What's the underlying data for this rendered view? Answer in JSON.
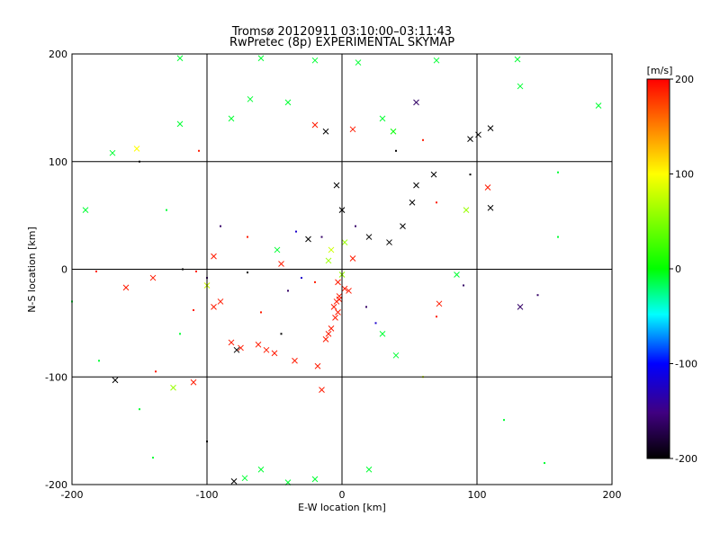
{
  "chart_data": {
    "type": "scatter",
    "title": "Tromsø 20120911 03:10:00–03:11:43",
    "subtitle": "RwPretec (8p) EXPERIMENTAL SKYMAP",
    "xlabel": "E-W location [km]",
    "ylabel": "N-S location [km]",
    "xlim": [
      -200,
      200
    ],
    "ylim": [
      -200,
      200
    ],
    "xticks": [
      "-200",
      "-100",
      "0",
      "100",
      "200"
    ],
    "yticks": [
      "-200",
      "-100",
      "0",
      "100",
      "200"
    ],
    "grid": true,
    "colorbar": {
      "label": "[m/s]",
      "range": [
        -200,
        200
      ],
      "ticks": [
        "200",
        "100",
        "0",
        "-100",
        "-200"
      ]
    },
    "points": [
      [
        -170,
        108,
        -10,
        "x"
      ],
      [
        -152,
        112,
        100,
        "x"
      ],
      [
        -120,
        135,
        -10,
        "x"
      ],
      [
        -106,
        110,
        190,
        "d"
      ],
      [
        -82,
        140,
        -10,
        "x"
      ],
      [
        -68,
        158,
        -10,
        "x"
      ],
      [
        -40,
        155,
        -10,
        "x"
      ],
      [
        -20,
        134,
        190,
        "x"
      ],
      [
        -12,
        128,
        -200,
        "x"
      ],
      [
        8,
        130,
        190,
        "x"
      ],
      [
        30,
        140,
        -10,
        "x"
      ],
      [
        38,
        128,
        0,
        "x"
      ],
      [
        55,
        155,
        -160,
        "x"
      ],
      [
        95,
        121,
        -200,
        "x"
      ],
      [
        101,
        125,
        -200,
        "x"
      ],
      [
        110,
        131,
        -200,
        "x"
      ],
      [
        132,
        170,
        -10,
        "x"
      ],
      [
        190,
        152,
        -10,
        "x"
      ],
      [
        -120,
        196,
        -10,
        "x"
      ],
      [
        -60,
        196,
        -10,
        "x"
      ],
      [
        -20,
        194,
        -10,
        "x"
      ],
      [
        12,
        192,
        -10,
        "x"
      ],
      [
        70,
        194,
        -10,
        "x"
      ],
      [
        130,
        195,
        -10,
        "x"
      ],
      [
        -4,
        78,
        -200,
        "x"
      ],
      [
        0,
        55,
        -200,
        "x"
      ],
      [
        10,
        40,
        -160,
        "d"
      ],
      [
        20,
        30,
        -200,
        "x"
      ],
      [
        35,
        25,
        -200,
        "x"
      ],
      [
        45,
        40,
        -200,
        "x"
      ],
      [
        52,
        62,
        -200,
        "x"
      ],
      [
        55,
        78,
        -200,
        "x"
      ],
      [
        68,
        88,
        -200,
        "x"
      ],
      [
        70,
        62,
        190,
        "d"
      ],
      [
        95,
        88,
        -200,
        "d"
      ],
      [
        108,
        76,
        190,
        "x"
      ],
      [
        110,
        57,
        -200,
        "x"
      ],
      [
        92,
        55,
        60,
        "x"
      ],
      [
        -15,
        30,
        -160,
        "d"
      ],
      [
        -25,
        28,
        -200,
        "x"
      ],
      [
        -34,
        35,
        -120,
        "d"
      ],
      [
        -48,
        18,
        -10,
        "x"
      ],
      [
        -45,
        5,
        190,
        "x"
      ],
      [
        -70,
        -3,
        -200,
        "d"
      ],
      [
        -70,
        30,
        190,
        "d"
      ],
      [
        -90,
        40,
        -160,
        "d"
      ],
      [
        -108,
        -2,
        190,
        "d"
      ],
      [
        -118,
        0,
        -200,
        "d"
      ],
      [
        -140,
        -8,
        190,
        "x"
      ],
      [
        -160,
        -17,
        190,
        "x"
      ],
      [
        -182,
        -2,
        190,
        "d"
      ],
      [
        -190,
        55,
        -10,
        "x"
      ],
      [
        -95,
        12,
        190,
        "x"
      ],
      [
        -90,
        -30,
        190,
        "x"
      ],
      [
        -95,
        -35,
        190,
        "x"
      ],
      [
        -100,
        -15,
        80,
        "x"
      ],
      [
        -78,
        -75,
        -200,
        "x"
      ],
      [
        -82,
        -68,
        190,
        "x"
      ],
      [
        -75,
        -73,
        190,
        "x"
      ],
      [
        -62,
        -70,
        190,
        "x"
      ],
      [
        -56,
        -75,
        190,
        "x"
      ],
      [
        -50,
        -78,
        190,
        "x"
      ],
      [
        -35,
        -85,
        190,
        "x"
      ],
      [
        -18,
        -90,
        190,
        "x"
      ],
      [
        -15,
        -112,
        190,
        "x"
      ],
      [
        -110,
        -105,
        190,
        "x"
      ],
      [
        -125,
        -110,
        60,
        "x"
      ],
      [
        -168,
        -103,
        -200,
        "x"
      ],
      [
        -80,
        -197,
        -200,
        "x"
      ],
      [
        -72,
        -194,
        -10,
        "x"
      ],
      [
        -60,
        -186,
        -10,
        "x"
      ],
      [
        -40,
        -198,
        -10,
        "x"
      ],
      [
        -20,
        -195,
        -10,
        "x"
      ],
      [
        20,
        -186,
        -10,
        "x"
      ],
      [
        132,
        -35,
        -160,
        "x"
      ],
      [
        145,
        -24,
        -160,
        "d"
      ],
      [
        90,
        -15,
        -160,
        "d"
      ],
      [
        85,
        -5,
        -10,
        "x"
      ],
      [
        72,
        -32,
        190,
        "x"
      ],
      [
        70,
        -44,
        190,
        "d"
      ],
      [
        60,
        -100,
        80,
        "d"
      ],
      [
        40,
        -80,
        -10,
        "x"
      ],
      [
        30,
        -60,
        -10,
        "x"
      ],
      [
        5,
        -20,
        190,
        "x"
      ],
      [
        -2,
        -25,
        190,
        "x"
      ],
      [
        -4,
        -30,
        190,
        "x"
      ],
      [
        -6,
        -35,
        190,
        "x"
      ],
      [
        -3,
        -40,
        190,
        "x"
      ],
      [
        -5,
        -45,
        190,
        "x"
      ],
      [
        -8,
        -55,
        190,
        "x"
      ],
      [
        -10,
        -60,
        190,
        "x"
      ],
      [
        -12,
        -65,
        190,
        "x"
      ],
      [
        -2,
        -28,
        190,
        "x"
      ],
      [
        2,
        -18,
        190,
        "x"
      ],
      [
        -3,
        -12,
        190,
        "x"
      ],
      [
        0,
        -5,
        60,
        "x"
      ],
      [
        -10,
        8,
        60,
        "x"
      ],
      [
        -8,
        18,
        80,
        "x"
      ],
      [
        2,
        25,
        60,
        "x"
      ],
      [
        8,
        10,
        190,
        "x"
      ],
      [
        -20,
        -12,
        190,
        "d"
      ],
      [
        -30,
        -8,
        -120,
        "d"
      ],
      [
        -40,
        -20,
        -160,
        "d"
      ],
      [
        18,
        -35,
        -160,
        "d"
      ],
      [
        25,
        -50,
        -120,
        "d"
      ],
      [
        -60,
        -40,
        190,
        "d"
      ],
      [
        -45,
        -60,
        -200,
        "d"
      ],
      [
        -100,
        -8,
        -160,
        "d"
      ],
      [
        -110,
        -38,
        190,
        "d"
      ],
      [
        -138,
        -95,
        190,
        "d"
      ],
      [
        -180,
        -85,
        -10,
        "d"
      ],
      [
        -150,
        -130,
        -10,
        "d"
      ],
      [
        -140,
        -175,
        -10,
        "d"
      ],
      [
        -100,
        -160,
        -200,
        "d"
      ],
      [
        150,
        -180,
        -10,
        "d"
      ],
      [
        120,
        -140,
        -10,
        "d"
      ],
      [
        160,
        90,
        -10,
        "d"
      ],
      [
        160,
        30,
        -10,
        "d"
      ],
      [
        -200,
        -30,
        -10,
        "d"
      ],
      [
        -150,
        100,
        -200,
        "d"
      ],
      [
        -130,
        55,
        -10,
        "d"
      ],
      [
        -120,
        -60,
        -10,
        "d"
      ],
      [
        40,
        110,
        -200,
        "d"
      ],
      [
        60,
        120,
        190,
        "d"
      ]
    ]
  }
}
